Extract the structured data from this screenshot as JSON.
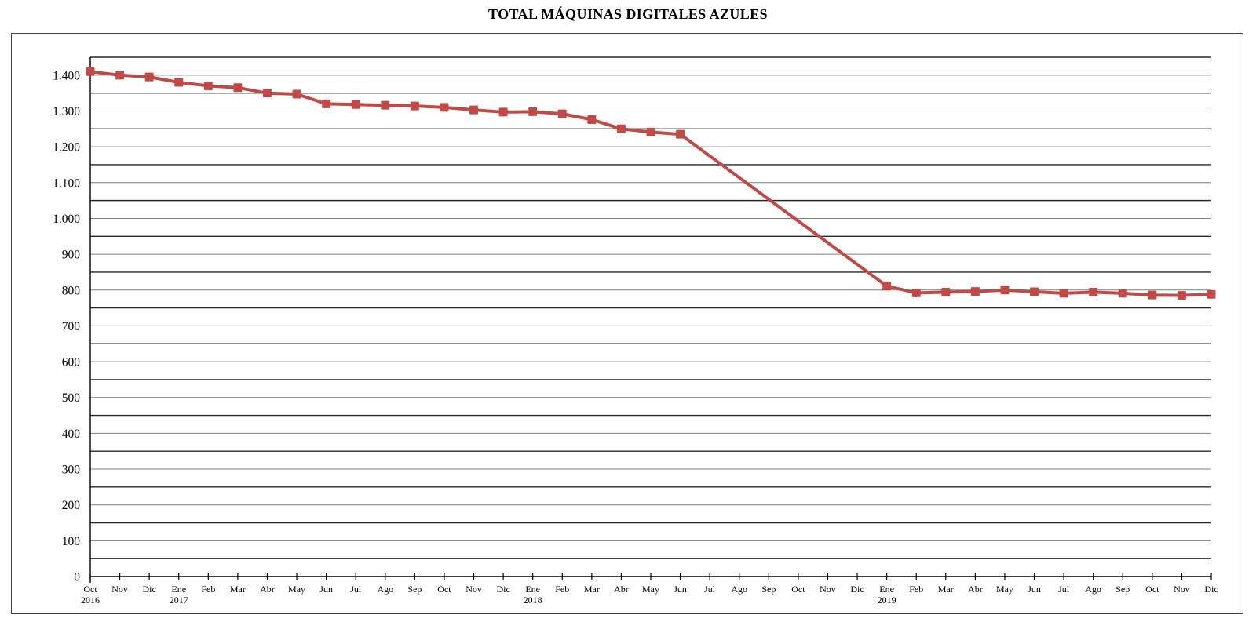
{
  "page": {
    "title": "TOTAL MÁQUINAS DIGITALES AZULES"
  },
  "chart_data": {
    "type": "line",
    "title": "TOTAL MÁQUINAS DIGITALES AZULES",
    "xlabel": "",
    "ylabel": "",
    "categories": [
      "Oct",
      "Nov",
      "Dic",
      "Ene",
      "Feb",
      "Mar",
      "Abr",
      "May",
      "Jun",
      "Jul",
      "Ago",
      "Sep",
      "Oct",
      "Nov",
      "Dic",
      "Ene",
      "Feb",
      "Mar",
      "Abr",
      "May",
      "Jun",
      "Jul",
      "Ago",
      "Sep",
      "Oct",
      "Nov",
      "Dic",
      "Ene",
      "Feb",
      "Mar",
      "Abr",
      "May",
      "Jun",
      "Jul",
      "Ago",
      "Sep",
      "Oct",
      "Nov",
      "Dic"
    ],
    "year_labels": [
      {
        "index": 0,
        "label": "2016"
      },
      {
        "index": 3,
        "label": "2017"
      },
      {
        "index": 15,
        "label": "2018"
      },
      {
        "index": 27,
        "label": "2019"
      }
    ],
    "series": [
      {
        "color": "#BE4B48",
        "marker": "square",
        "values": [
          1410,
          1400,
          1395,
          1380,
          1370,
          1365,
          1350,
          1347,
          1320,
          1318,
          1316,
          1314,
          1310,
          1303,
          1297,
          1298,
          1292,
          1276,
          1250,
          1241,
          1235,
          null,
          null,
          null,
          null,
          null,
          null,
          811,
          792,
          794,
          796,
          800,
          795,
          791,
          794,
          791,
          786,
          785,
          788
        ]
      }
    ],
    "ylim": [
      0,
      1450
    ],
    "y_major_step": 100,
    "y_minor_step": 50,
    "y_tick_labels": [
      "0",
      "100",
      "200",
      "300",
      "400",
      "500",
      "600",
      "700",
      "800",
      "900",
      "1.000",
      "1.100",
      "1.200",
      "1.300",
      "1.400"
    ],
    "grid": "horizontal-every-50",
    "legend": "none",
    "colors": {
      "series": "#BE4B48",
      "axis": "#000000",
      "grid_major": "#7F7F7F",
      "grid_minor": "#262626"
    }
  }
}
